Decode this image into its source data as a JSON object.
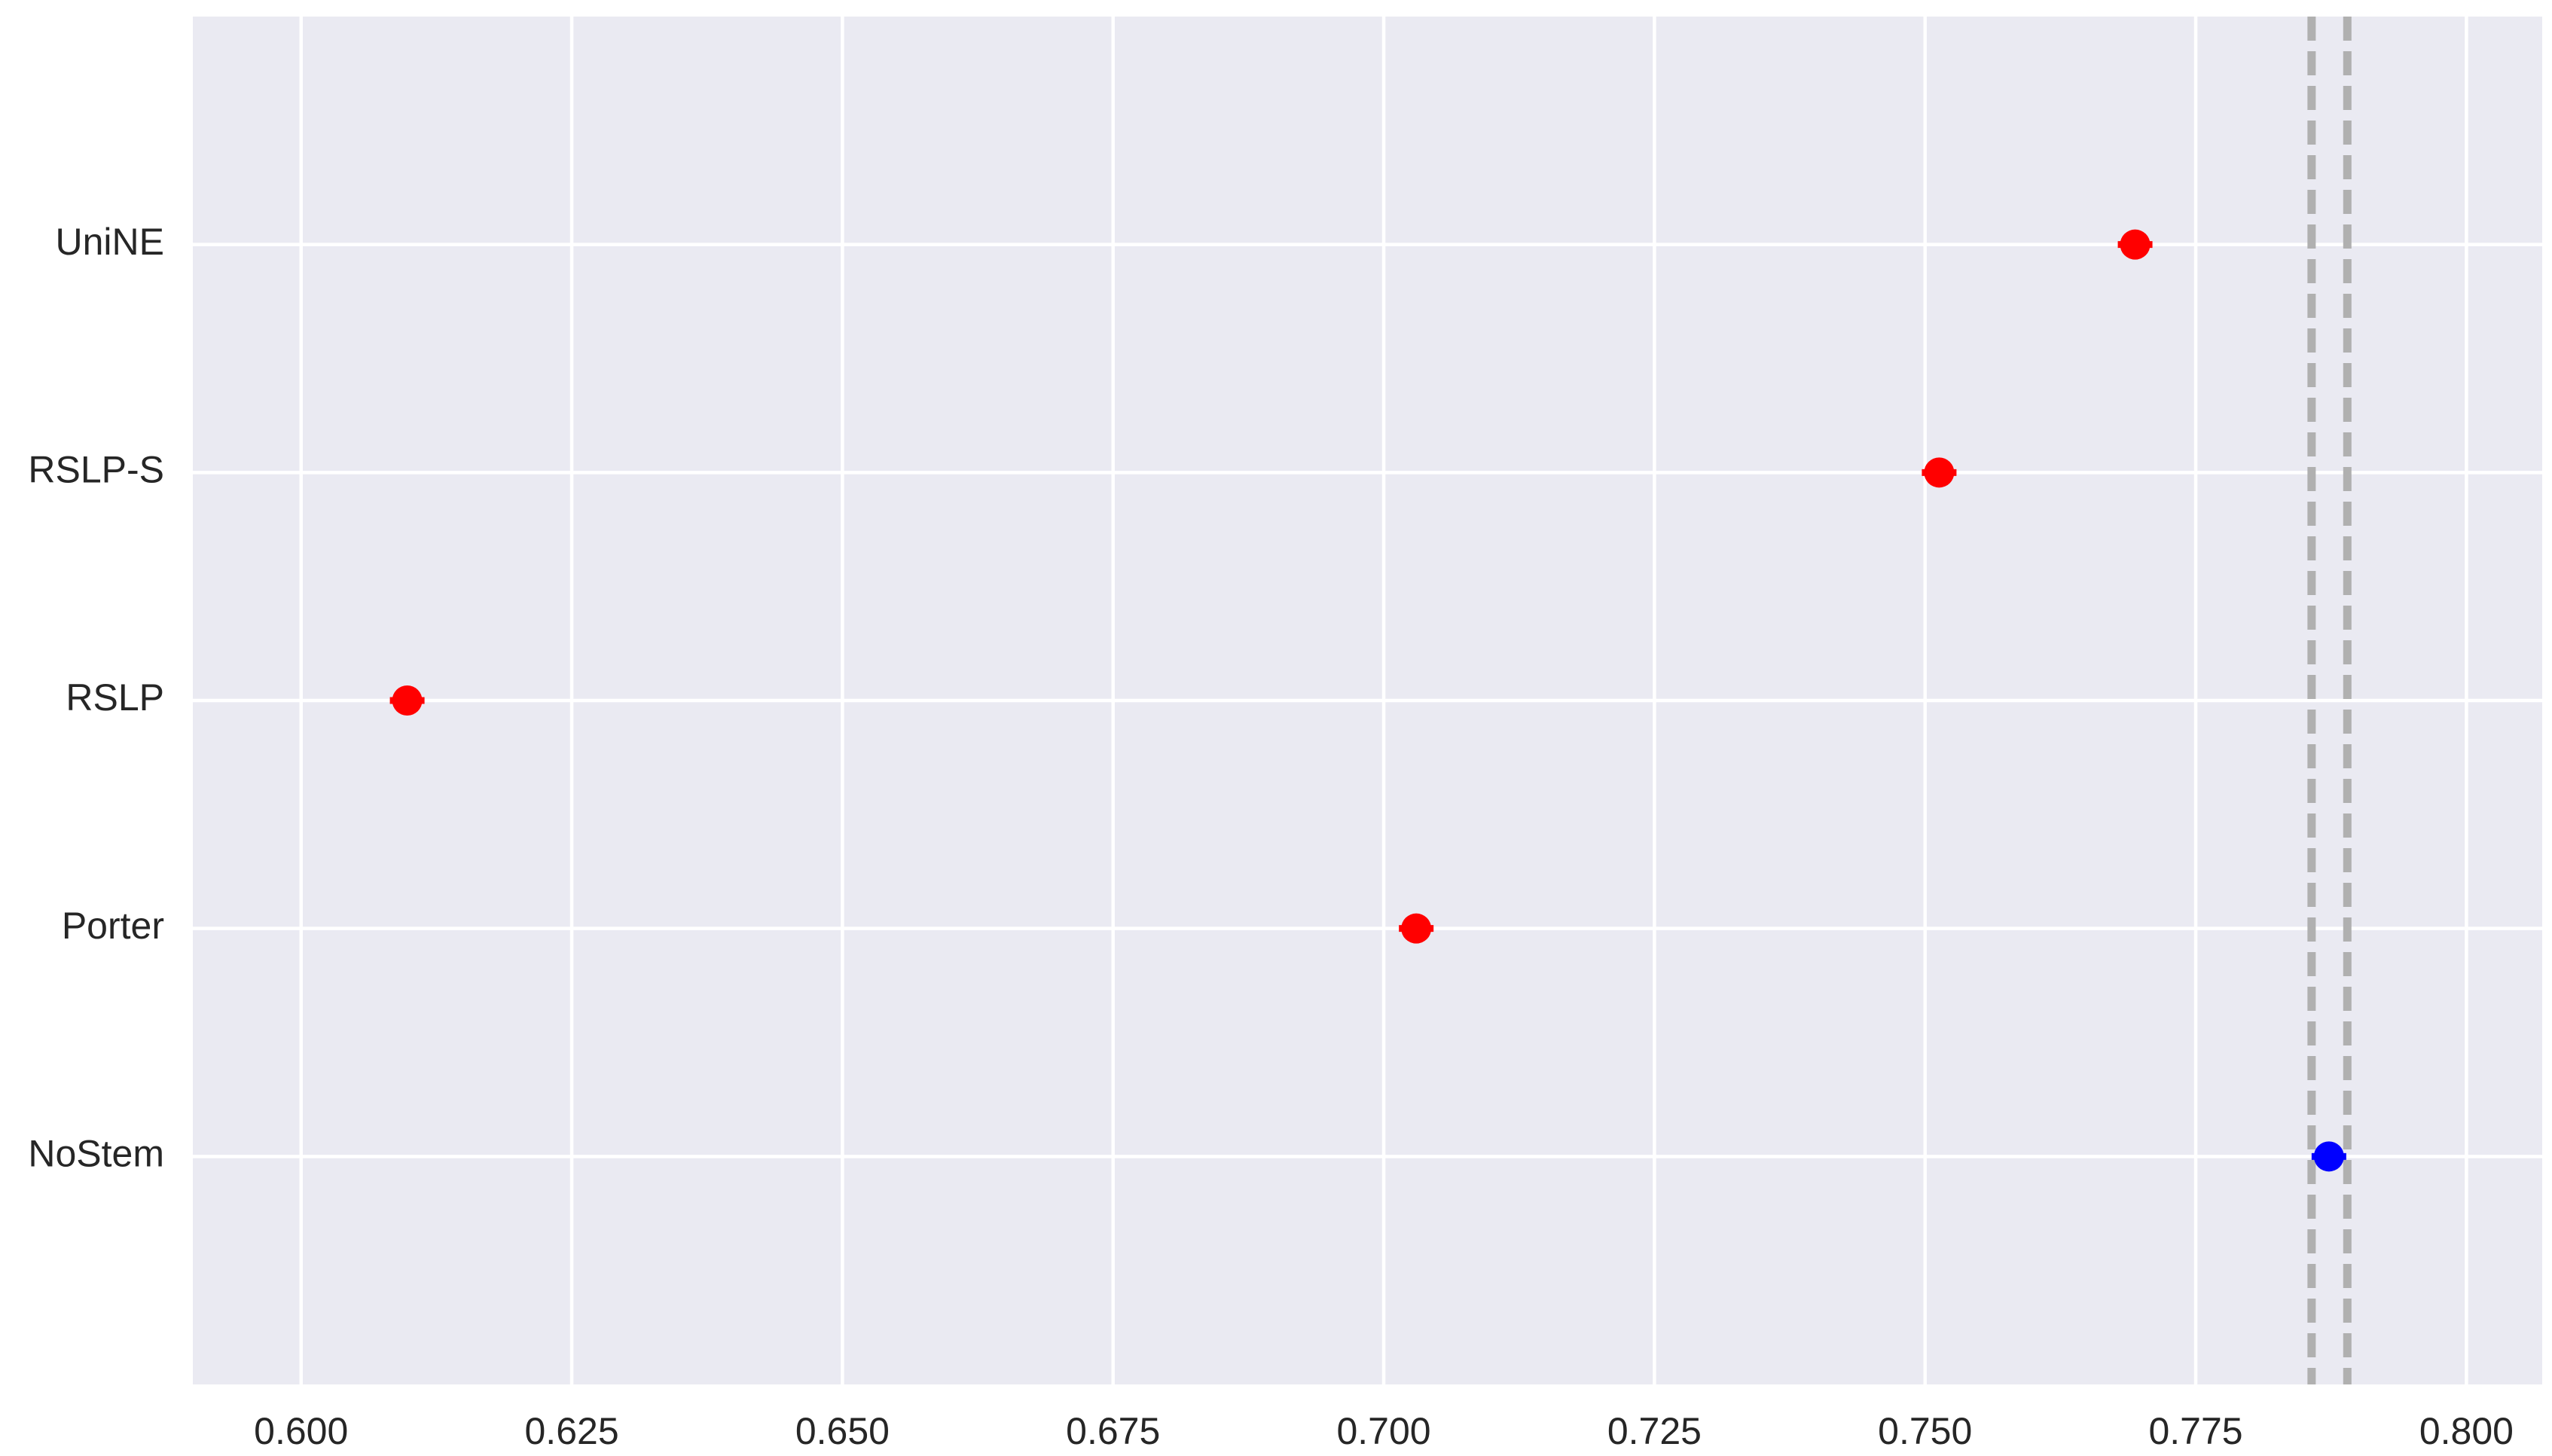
{
  "chart_data": {
    "type": "dot",
    "categories": [
      "UniNE",
      "RSLP-S",
      "RSLP",
      "Porter",
      "NoStem"
    ],
    "values": [
      0.7694,
      0.7513,
      0.6098,
      0.703,
      0.7873
    ],
    "errors": [
      0.0016,
      0.0016,
      0.0016,
      0.0016,
      0.0016
    ],
    "colors": [
      "#ff0000",
      "#ff0000",
      "#ff0000",
      "#ff0000",
      "#0000ff"
    ],
    "reference_lines": [
      0.7857,
      0.789
    ],
    "reference_color": "#b0b0b0",
    "xlim": [
      0.59,
      0.807
    ],
    "xticks": [
      {
        "value": 0.6,
        "label": "0.600"
      },
      {
        "value": 0.625,
        "label": "0.625"
      },
      {
        "value": 0.65,
        "label": "0.650"
      },
      {
        "value": 0.675,
        "label": "0.675"
      },
      {
        "value": 0.7,
        "label": "0.700"
      },
      {
        "value": 0.725,
        "label": "0.725"
      },
      {
        "value": 0.75,
        "label": "0.750"
      },
      {
        "value": 0.775,
        "label": "0.775"
      },
      {
        "value": 0.8,
        "label": "0.800"
      }
    ],
    "grid": true
  }
}
